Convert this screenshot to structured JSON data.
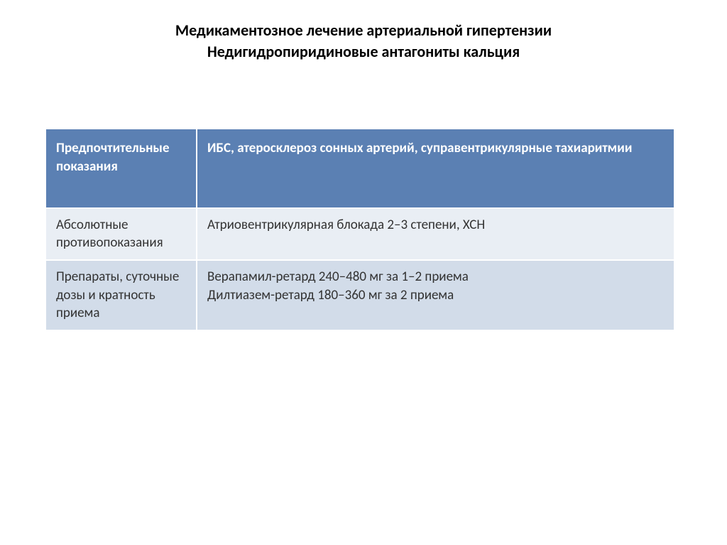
{
  "title": {
    "line1": "Медикаментозное лечение артериальной гипертензии",
    "line2": "Недигидропиридиновые антагониты кальция"
  },
  "table": {
    "header_bg": "#5b80b3",
    "alt1_bg": "#e9eef4",
    "alt2_bg": "#d2dce9",
    "rows": [
      {
        "label": "Предпочтительные показания",
        "value": "ИБС, атеросклероз сонных артерий, суправентрикулярные тахиаритмии"
      },
      {
        "label": "Абсолютные противопоказания",
        "value": "Атриовентрикулярная блокада 2–3 степени, ХСН"
      },
      {
        "label": "Препараты, суточные дозы и кратность приема",
        "value_line1": "Верапамил-ретард 240–480 мг за 1–2 приема",
        "value_line2": "Дилтиазем-ретард 180–360 мг за 2 приема"
      }
    ]
  }
}
